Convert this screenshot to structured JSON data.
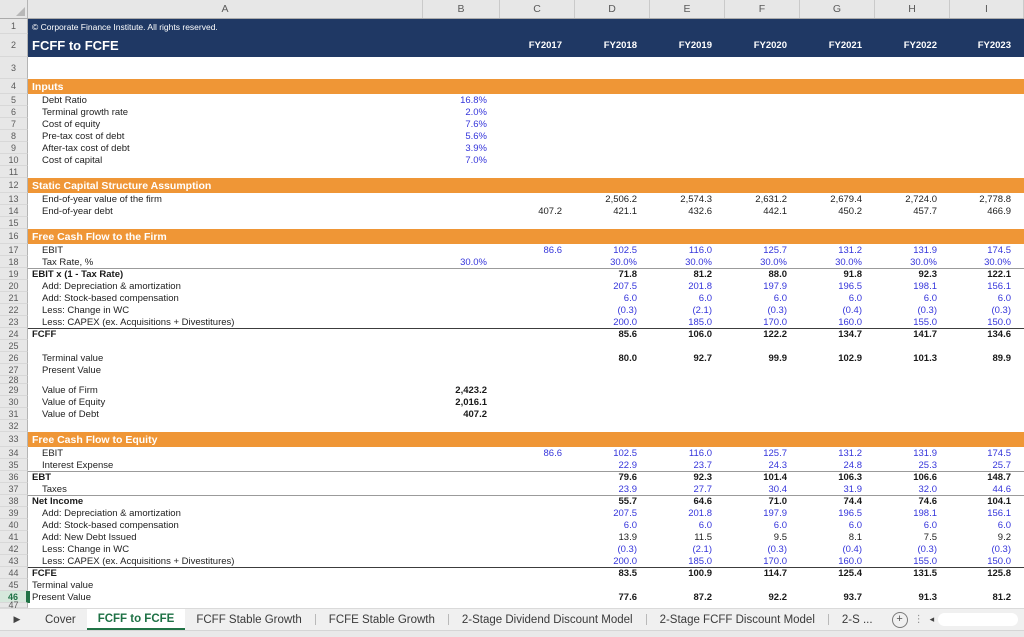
{
  "colors": {
    "navy": "#1F3864",
    "orange": "#EF9636",
    "input_blue": "#3535DB",
    "excel_green": "#217346"
  },
  "header": {
    "copyright": "© Corporate Finance Institute. All rights reserved.",
    "title": "FCFF to FCFE"
  },
  "columns": {
    "letters": [
      "A",
      "B",
      "C",
      "D",
      "E",
      "F",
      "G",
      "H",
      "I"
    ],
    "years": [
      "FY2017",
      "FY2018",
      "FY2019",
      "FY2020",
      "FY2021",
      "FY2022",
      "FY2023"
    ]
  },
  "rows": [
    {
      "n": 1,
      "kind": "copyright"
    },
    {
      "n": 2,
      "kind": "title"
    },
    {
      "n": 3,
      "kind": "spacer-lg"
    },
    {
      "n": 4,
      "kind": "section",
      "label": "Inputs"
    },
    {
      "n": 5,
      "kind": "data",
      "label": "Debt Ratio",
      "vstyle": "blue",
      "values": [
        "16.8%",
        "",
        "",
        "",
        "",
        "",
        "",
        ""
      ]
    },
    {
      "n": 6,
      "kind": "data",
      "label": "Terminal growth rate",
      "vstyle": "blue",
      "values": [
        "2.0%",
        "",
        "",
        "",
        "",
        "",
        "",
        ""
      ]
    },
    {
      "n": 7,
      "kind": "data",
      "label": "Cost of equity",
      "vstyle": "blue",
      "values": [
        "7.6%",
        "",
        "",
        "",
        "",
        "",
        "",
        ""
      ]
    },
    {
      "n": 8,
      "kind": "data",
      "label": "Pre-tax cost of debt",
      "vstyle": "blue",
      "values": [
        "5.6%",
        "",
        "",
        "",
        "",
        "",
        "",
        ""
      ]
    },
    {
      "n": 9,
      "kind": "data",
      "label": "After-tax cost of debt",
      "vstyle": "blue",
      "values": [
        "3.9%",
        "",
        "",
        "",
        "",
        "",
        "",
        ""
      ]
    },
    {
      "n": 10,
      "kind": "data",
      "label": "Cost of capital",
      "vstyle": "blue",
      "values": [
        "7.0%",
        "",
        "",
        "",
        "",
        "",
        "",
        ""
      ]
    },
    {
      "n": 11,
      "kind": "spacer"
    },
    {
      "n": 12,
      "kind": "section",
      "label": "Static Capital Structure Assumption"
    },
    {
      "n": 13,
      "kind": "data",
      "label": "End-of-year value of the firm",
      "vstyle": "black",
      "values": [
        "",
        "",
        "2,506.2",
        "2,574.3",
        "2,631.2",
        "2,679.4",
        "2,724.0",
        "2,778.8"
      ]
    },
    {
      "n": 14,
      "kind": "data",
      "label": "End-of-year debt",
      "vstyle": "black",
      "values": [
        "",
        "407.2",
        "421.1",
        "432.6",
        "442.1",
        "450.2",
        "457.7",
        "466.9"
      ]
    },
    {
      "n": 15,
      "kind": "spacer"
    },
    {
      "n": 16,
      "kind": "section",
      "label": "Free Cash Flow to the Firm"
    },
    {
      "n": 17,
      "kind": "data",
      "label": "EBIT",
      "vstyle": "blue",
      "values": [
        "",
        "86.6",
        "102.5",
        "116.0",
        "125.7",
        "131.2",
        "131.9",
        "174.5"
      ]
    },
    {
      "n": 18,
      "kind": "data",
      "label": "Tax Rate, %",
      "vstyle": "blue",
      "values": [
        "30.0%",
        "",
        "30.0%",
        "30.0%",
        "30.0%",
        "30.0%",
        "30.0%",
        "30.0%"
      ]
    },
    {
      "n": 19,
      "kind": "data",
      "label": "EBIT x (1 - Tax Rate)",
      "flush": true,
      "boldLabel": true,
      "border": "gray",
      "vstyle": "bold",
      "values": [
        "",
        "",
        "71.8",
        "81.2",
        "88.0",
        "91.8",
        "92.3",
        "122.1"
      ]
    },
    {
      "n": 20,
      "kind": "data",
      "label": "Add: Depreciation & amortization",
      "vstyle": "blue",
      "values": [
        "",
        "",
        "207.5",
        "201.8",
        "197.9",
        "196.5",
        "198.1",
        "156.1"
      ]
    },
    {
      "n": 21,
      "kind": "data",
      "label": "Add: Stock-based compensation",
      "vstyle": "blue",
      "values": [
        "",
        "",
        "6.0",
        "6.0",
        "6.0",
        "6.0",
        "6.0",
        "6.0"
      ]
    },
    {
      "n": 22,
      "kind": "data",
      "label": "Less: Change in WC",
      "vstyle": "blue",
      "values": [
        "",
        "",
        "(0.3)",
        "(2.1)",
        "(0.3)",
        "(0.4)",
        "(0.3)",
        "(0.3)"
      ]
    },
    {
      "n": 23,
      "kind": "data",
      "label": "Less: CAPEX (ex. Acquisitions + Divestitures)",
      "vstyle": "blue",
      "values": [
        "",
        "",
        "200.0",
        "185.0",
        "170.0",
        "160.0",
        "155.0",
        "150.0"
      ]
    },
    {
      "n": 24,
      "kind": "data",
      "label": "FCFF",
      "flush": true,
      "boldLabel": true,
      "border": "dark",
      "vstyle": "bold",
      "values": [
        "",
        "",
        "85.6",
        "106.0",
        "122.2",
        "134.7",
        "141.7",
        "134.6"
      ]
    },
    {
      "n": 25,
      "kind": "spacer"
    },
    {
      "n": 26,
      "kind": "data",
      "label": "Terminal value",
      "vstyle": "bold",
      "values": [
        "",
        "",
        "80.0",
        "92.7",
        "99.9",
        "102.9",
        "101.3",
        "89.9"
      ]
    },
    {
      "n": 27,
      "kind": "data",
      "label": "Present Value",
      "values": [
        "",
        "",
        "",
        "",
        "",
        "",
        "",
        ""
      ]
    },
    {
      "n": 28,
      "kind": "spacer-sm"
    },
    {
      "n": 29,
      "kind": "data",
      "label": "Value of Firm",
      "vstyle": "bold",
      "values": [
        "2,423.2",
        "",
        "",
        "",
        "",
        "",
        "",
        ""
      ]
    },
    {
      "n": 30,
      "kind": "data",
      "label": "Value of Equity",
      "vstyle": "bold",
      "values": [
        "2,016.1",
        "",
        "",
        "",
        "",
        "",
        "",
        ""
      ]
    },
    {
      "n": 31,
      "kind": "data",
      "label": "Value of Debt",
      "vstyle": "bold",
      "values": [
        "407.2",
        "",
        "",
        "",
        "",
        "",
        "",
        ""
      ]
    },
    {
      "n": 32,
      "kind": "spacer"
    },
    {
      "n": 33,
      "kind": "section",
      "label": "Free Cash Flow to Equity"
    },
    {
      "n": 34,
      "kind": "data",
      "label": "EBIT",
      "vstyle": "blue",
      "values": [
        "",
        "86.6",
        "102.5",
        "116.0",
        "125.7",
        "131.2",
        "131.9",
        "174.5"
      ]
    },
    {
      "n": 35,
      "kind": "data",
      "label": "Interest Expense",
      "vstyle": "blue",
      "values": [
        "",
        "",
        "22.9",
        "23.7",
        "24.3",
        "24.8",
        "25.3",
        "25.7"
      ]
    },
    {
      "n": 36,
      "kind": "data",
      "label": "EBT",
      "flush": true,
      "boldLabel": true,
      "border": "gray",
      "vstyle": "bold",
      "values": [
        "",
        "",
        "79.6",
        "92.3",
        "101.4",
        "106.3",
        "106.6",
        "148.7"
      ]
    },
    {
      "n": 37,
      "kind": "data",
      "label": "Taxes",
      "vstyle": "blue",
      "values": [
        "",
        "",
        "23.9",
        "27.7",
        "30.4",
        "31.9",
        "32.0",
        "44.6"
      ]
    },
    {
      "n": 38,
      "kind": "data",
      "label": "Net Income",
      "flush": true,
      "boldLabel": true,
      "border": "gray",
      "vstyle": "bold",
      "values": [
        "",
        "",
        "55.7",
        "64.6",
        "71.0",
        "74.4",
        "74.6",
        "104.1"
      ]
    },
    {
      "n": 39,
      "kind": "data",
      "label": "Add: Depreciation & amortization",
      "vstyle": "blue",
      "values": [
        "",
        "",
        "207.5",
        "201.8",
        "197.9",
        "196.5",
        "198.1",
        "156.1"
      ]
    },
    {
      "n": 40,
      "kind": "data",
      "label": "Add: Stock-based compensation",
      "vstyle": "blue",
      "values": [
        "",
        "",
        "6.0",
        "6.0",
        "6.0",
        "6.0",
        "6.0",
        "6.0"
      ]
    },
    {
      "n": 41,
      "kind": "data",
      "label": "Add: New Debt Issued",
      "vstyle": "black",
      "values": [
        "",
        "",
        "13.9",
        "11.5",
        "9.5",
        "8.1",
        "7.5",
        "9.2"
      ]
    },
    {
      "n": 42,
      "kind": "data",
      "label": "Less: Change in WC",
      "vstyle": "blue",
      "values": [
        "",
        "",
        "(0.3)",
        "(2.1)",
        "(0.3)",
        "(0.4)",
        "(0.3)",
        "(0.3)"
      ]
    },
    {
      "n": 43,
      "kind": "data",
      "label": "Less: CAPEX (ex. Acquisitions + Divestitures)",
      "vstyle": "blue",
      "values": [
        "",
        "",
        "200.0",
        "185.0",
        "170.0",
        "160.0",
        "155.0",
        "150.0"
      ]
    },
    {
      "n": 44,
      "kind": "data",
      "label": "FCFE",
      "flush": true,
      "boldLabel": true,
      "border": "dark",
      "vstyle": "bold",
      "values": [
        "",
        "",
        "83.5",
        "100.9",
        "114.7",
        "125.4",
        "131.5",
        "125.8"
      ]
    },
    {
      "n": 45,
      "kind": "data",
      "label": "Terminal value",
      "flush": true,
      "values": [
        "",
        "",
        "",
        "",
        "",
        "",
        "",
        ""
      ]
    },
    {
      "n": 46,
      "kind": "data",
      "label": "Present Value",
      "flush": true,
      "active": true,
      "vstyle": "bold",
      "values": [
        "",
        "",
        "77.6",
        "87.2",
        "92.2",
        "93.7",
        "91.3",
        "81.2"
      ]
    },
    {
      "n": 47,
      "kind": "spacer-xs"
    }
  ],
  "tabbar": {
    "nav_left": "▶",
    "items": [
      {
        "label": "Cover",
        "active": false
      },
      {
        "label": "FCFF to FCFE",
        "active": true
      },
      {
        "label": "FCFF Stable Growth",
        "active": false
      },
      {
        "label": "FCFE Stable Growth",
        "active": false
      },
      {
        "label": "2-Stage Dividend Discount Model",
        "active": false
      },
      {
        "label": "2-Stage FCFF Discount Model",
        "active": false
      },
      {
        "label": "2-S ...",
        "active": false
      }
    ],
    "add_label": "+",
    "dots": "⋮",
    "scroll_left": "◂"
  }
}
